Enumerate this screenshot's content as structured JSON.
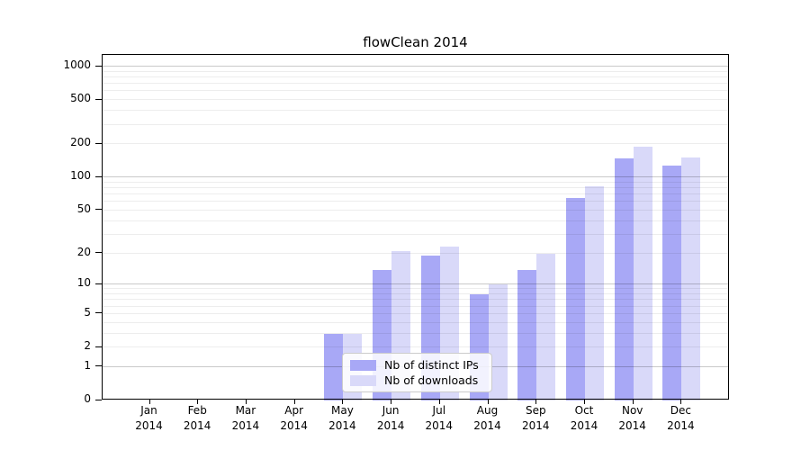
{
  "title": "flowClean 2014",
  "colors": {
    "ips_bar": "#a8a8f6",
    "downloads_bar": "#d9d9f9",
    "grid_major": "#c9c9c9",
    "grid_minor": "#ededed",
    "axis": "#000000",
    "legend_border": "#cccccc"
  },
  "legend": {
    "items": [
      {
        "label": "Nb of distinct IPs",
        "color_key": "ips_bar"
      },
      {
        "label": "Nb of downloads",
        "color_key": "downloads_bar"
      }
    ]
  },
  "chart_data": {
    "type": "bar",
    "title": "flowClean 2014",
    "categories": [
      "Jan 2014",
      "Feb 2014",
      "Mar 2014",
      "Apr 2014",
      "May 2014",
      "Jun 2014",
      "Jul 2014",
      "Aug 2014",
      "Sep 2014",
      "Oct 2014",
      "Nov 2014",
      "Dec 2014"
    ],
    "series": [
      {
        "name": "Nb of distinct IPs",
        "values": [
          0,
          0,
          0,
          0,
          3,
          14,
          19,
          8,
          14,
          65,
          149,
          127
        ]
      },
      {
        "name": "Nb of downloads",
        "values": [
          0,
          0,
          0,
          0,
          3,
          21,
          23,
          10,
          20,
          83,
          190,
          152
        ]
      }
    ],
    "xlabel": "",
    "ylabel": "",
    "yscale": "log1p",
    "yticks": [
      0,
      1,
      2,
      5,
      10,
      20,
      50,
      100,
      200,
      500,
      1000
    ],
    "yticks_minor": [
      3,
      4,
      6,
      7,
      8,
      9,
      30,
      40,
      60,
      70,
      80,
      90,
      300,
      400,
      600,
      700,
      800,
      900
    ],
    "ylim": [
      0,
      1280
    ],
    "grid": true,
    "legend_position": "lower center"
  }
}
